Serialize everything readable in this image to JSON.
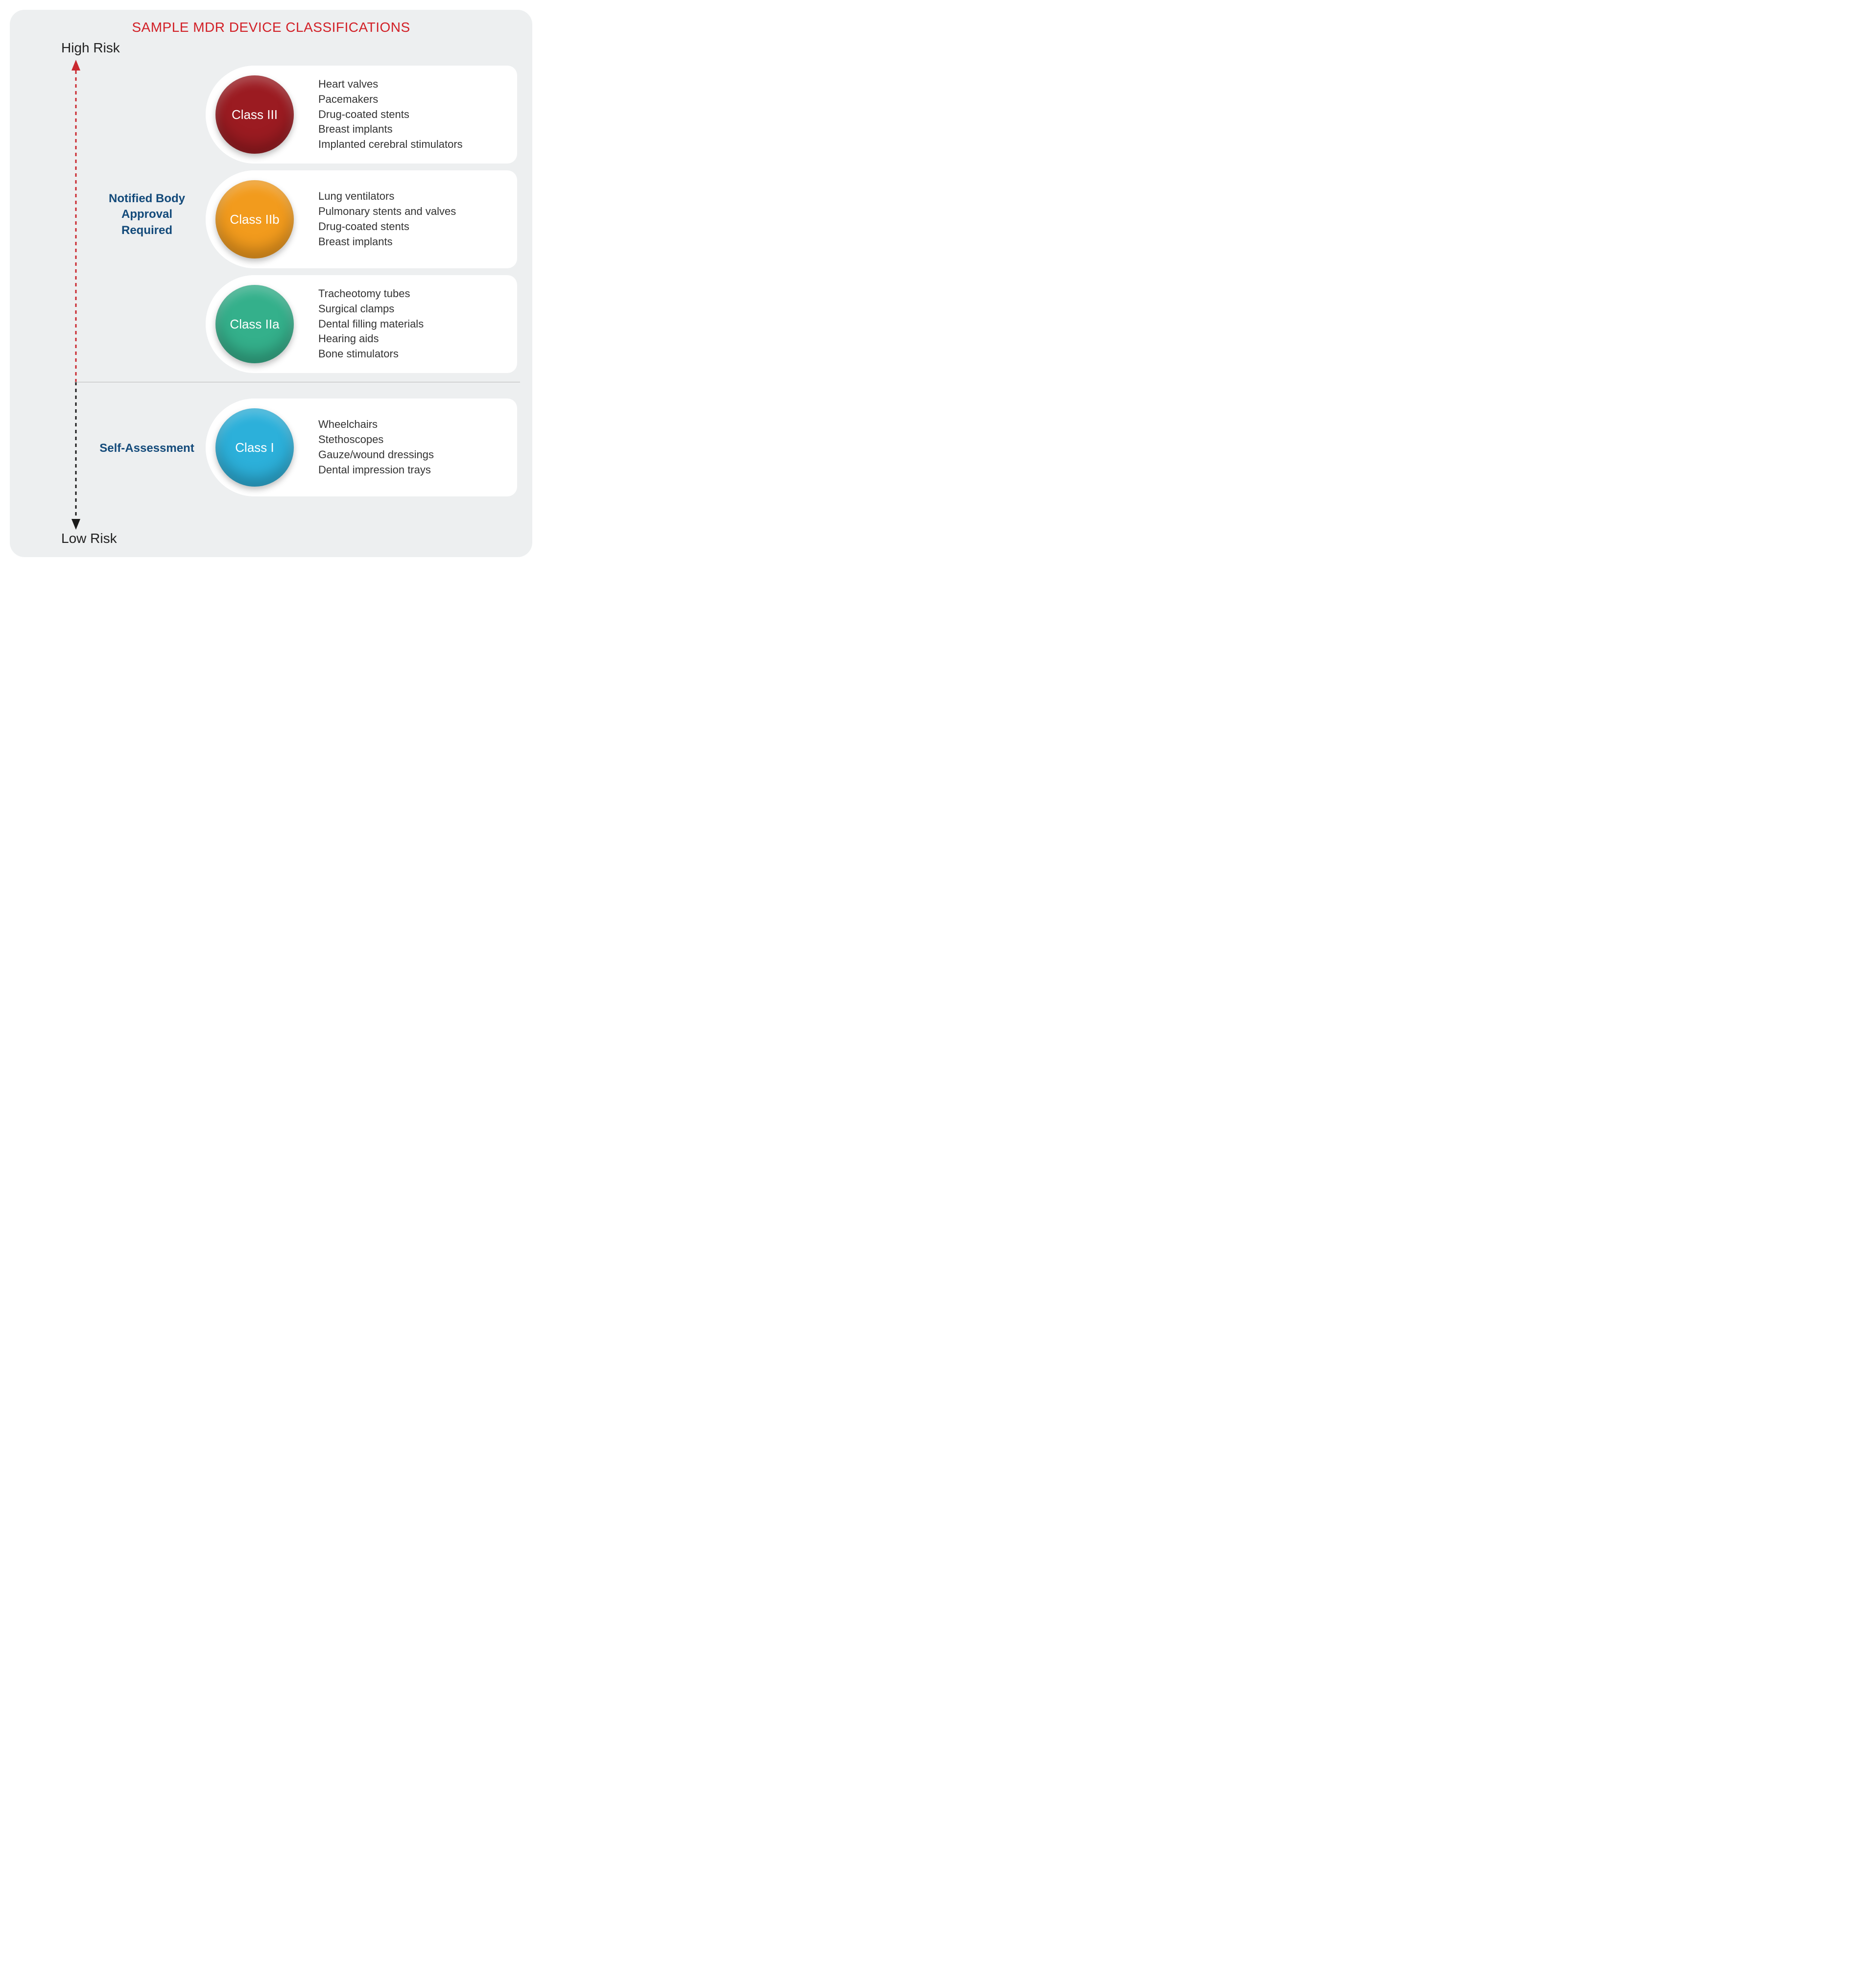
{
  "title": "SAMPLE MDR DEVICE CLASSIFICATIONS",
  "axis": {
    "high_label": "High Risk",
    "low_label": "Low Risk",
    "top_arrow_color": "#c9282f",
    "bottom_arrow_color": "#1a1a1a",
    "dash": "6,6",
    "stroke_width": 3
  },
  "side_labels": {
    "notified": "Notified Body\nApproval\nRequired",
    "self": "Self-Assessment",
    "color": "#134a7a",
    "fontsize": 24
  },
  "divider": {
    "color": "#b8b8b8"
  },
  "classes": [
    {
      "key": "class3",
      "label": "Class III",
      "circle_color": "#9b1b21",
      "examples": [
        "Heart valves",
        "Pacemakers",
        "Drug-coated stents",
        "Breast implants",
        "Implanted cerebral stimulators"
      ]
    },
    {
      "key": "class2b",
      "label": "Class IIb",
      "circle_color": "#f29b1d",
      "examples": [
        "Lung ventilators",
        "Pulmonary stents and valves",
        "Drug-coated stents",
        "Breast implants"
      ]
    },
    {
      "key": "class2a",
      "label": "Class IIa",
      "circle_color": "#34b08b",
      "examples": [
        "Tracheotomy tubes",
        "Surgical clamps",
        "Dental filling materials",
        "Hearing aids",
        "Bone stimulators"
      ]
    },
    {
      "key": "class1",
      "label": "Class I",
      "circle_color": "#2cb0da",
      "examples": [
        "Wheelchairs",
        "Stethoscopes",
        "Gauze/wound dressings",
        "Dental impression trays"
      ]
    }
  ],
  "styling": {
    "background_color": "#edeff0",
    "pill_bg": "#ffffff",
    "pill_radius": 20,
    "circle_outer_diameter": 200,
    "circle_inner_diameter": 160,
    "title_color": "#d22027",
    "title_fontsize": 28,
    "label_fontsize": 26,
    "example_fontsize": 22,
    "example_color": "#333333",
    "container_width": 1067,
    "container_height": 1118
  }
}
